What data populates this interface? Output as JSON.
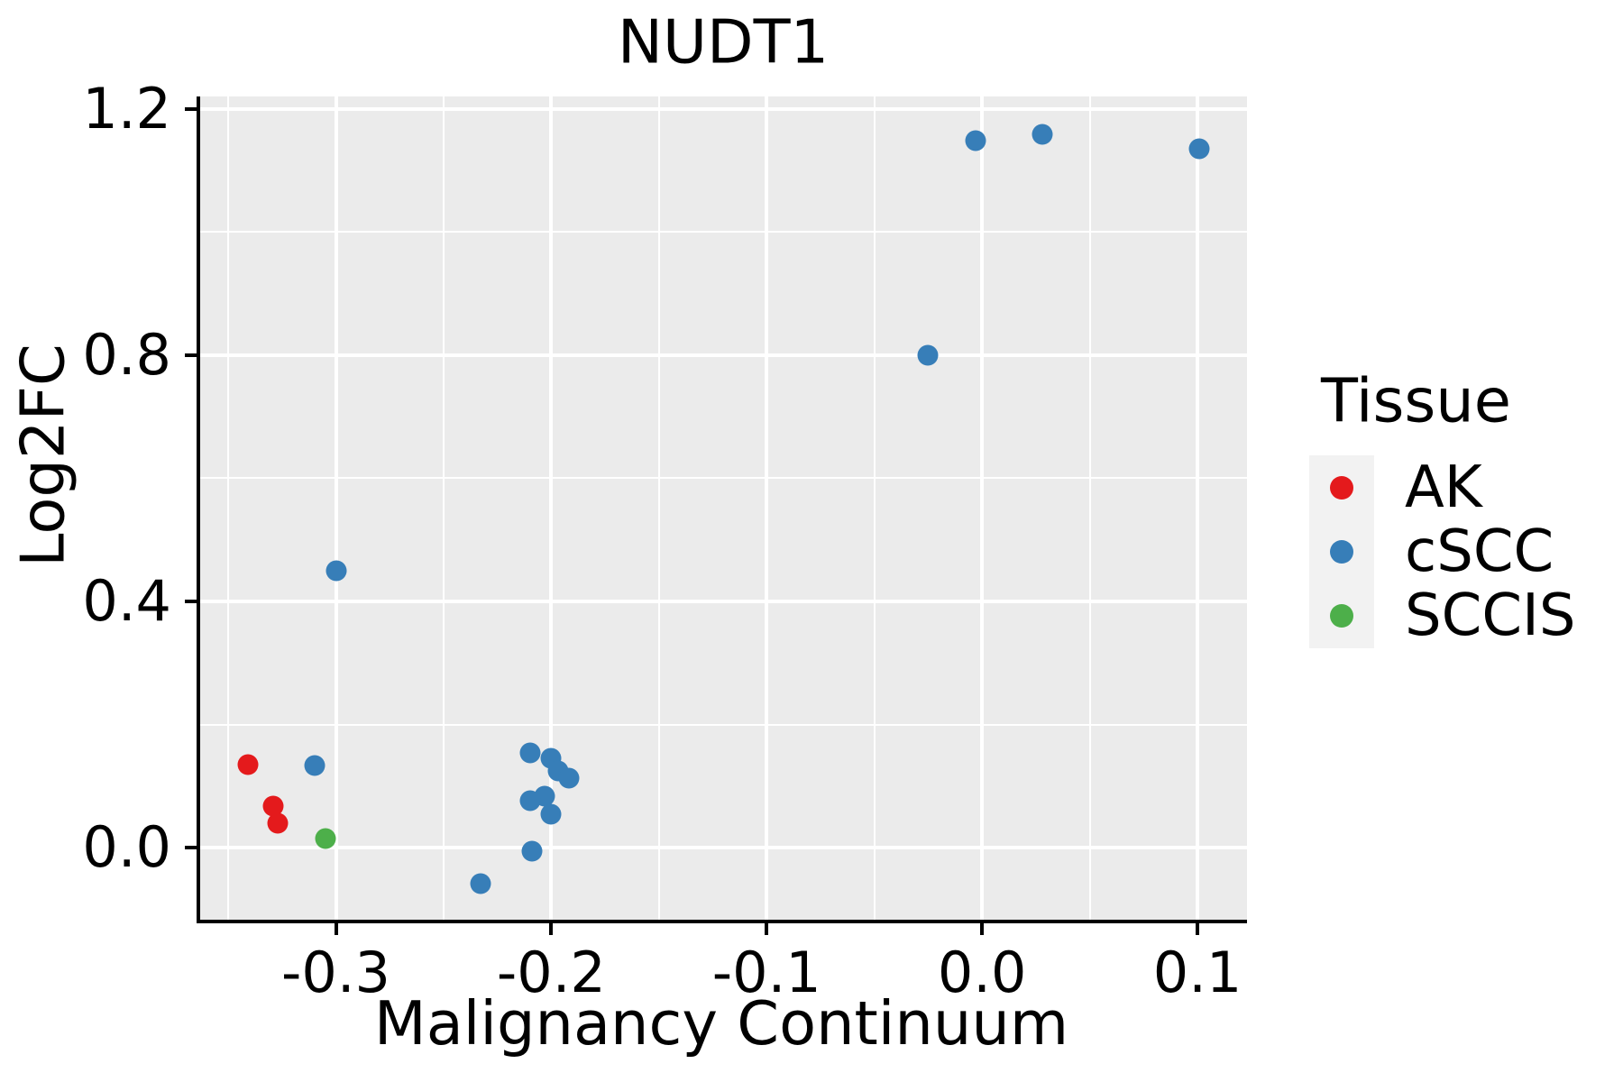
{
  "title": "NUDT1",
  "chart_data": {
    "type": "scatter",
    "title": "NUDT1",
    "xlabel": "Malignancy Continuum",
    "ylabel": "Log2FC",
    "xlim": [
      -0.363,
      0.123
    ],
    "ylim": [
      -0.117,
      1.22
    ],
    "x_major_ticks": [
      -0.3,
      -0.2,
      -0.1,
      0.0,
      0.1
    ],
    "x_tick_labels": [
      "-0.3",
      "-0.2",
      "-0.1",
      "0.0",
      "0.1"
    ],
    "x_minor_ticks": [
      -0.35,
      -0.25,
      -0.15,
      -0.05,
      0.05
    ],
    "y_major_ticks": [
      0.0,
      0.4,
      0.8,
      1.2
    ],
    "y_tick_labels": [
      "0.0",
      "0.4",
      "0.8",
      "1.2"
    ],
    "y_minor_ticks": [
      0.2,
      0.6,
      1.0
    ],
    "grid": true,
    "panel_background": "#EBEBEB",
    "gridline_color": "#ffffff",
    "axis_color": "#000000",
    "legend": {
      "title": "Tissue",
      "position": "right",
      "key_background": "#F2F2F2",
      "entries": [
        {
          "label": "AK",
          "color": "#E41A1C"
        },
        {
          "label": "cSCC",
          "color": "#377EB8"
        },
        {
          "label": "SCCIS",
          "color": "#4DAF4A"
        }
      ]
    },
    "series": [
      {
        "name": "AK",
        "color": "#E41A1C",
        "points": [
          [
            -0.341,
            0.135
          ],
          [
            -0.329,
            0.067
          ],
          [
            -0.327,
            0.04
          ]
        ]
      },
      {
        "name": "cSCC",
        "color": "#377EB8",
        "points": [
          [
            -0.003,
            1.148
          ],
          [
            0.028,
            1.158
          ],
          [
            0.101,
            1.135
          ],
          [
            -0.025,
            0.8
          ],
          [
            -0.3,
            0.449
          ],
          [
            -0.31,
            0.133
          ],
          [
            -0.21,
            0.154
          ],
          [
            -0.2,
            0.145
          ],
          [
            -0.197,
            0.124
          ],
          [
            -0.192,
            0.113
          ],
          [
            -0.203,
            0.083
          ],
          [
            -0.21,
            0.076
          ],
          [
            -0.2,
            0.054
          ],
          [
            -0.209,
            -0.006
          ],
          [
            -0.233,
            -0.059
          ]
        ]
      },
      {
        "name": "SCCIS",
        "color": "#4DAF4A",
        "points": [
          [
            -0.305,
            0.015
          ]
        ]
      }
    ]
  }
}
